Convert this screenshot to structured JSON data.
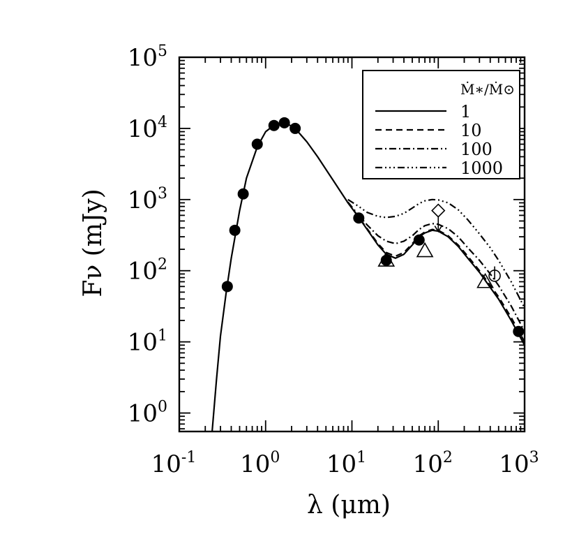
{
  "chart_data": {
    "type": "scatter",
    "xlabel": "λ (μm)",
    "ylabel": "Fν (mJy)",
    "xscale": "log",
    "yscale": "log",
    "xlim": [
      0.1,
      1000
    ],
    "ylim": [
      0.55,
      100000
    ],
    "grid": false,
    "x_ticks": [
      {
        "value": 0.1,
        "base": "10",
        "exp": "-1"
      },
      {
        "value": 1,
        "base": "10",
        "exp": "0"
      },
      {
        "value": 10,
        "base": "10",
        "exp": "1"
      },
      {
        "value": 100,
        "base": "10",
        "exp": "2"
      },
      {
        "value": 1000,
        "base": "10",
        "exp": "3"
      }
    ],
    "y_ticks": [
      {
        "value": 1,
        "base": "10",
        "exp": "0"
      },
      {
        "value": 10,
        "base": "10",
        "exp": "1"
      },
      {
        "value": 100,
        "base": "10",
        "exp": "2"
      },
      {
        "value": 1000,
        "base": "10",
        "exp": "3"
      },
      {
        "value": 10000,
        "base": "10",
        "exp": "4"
      },
      {
        "value": 100000,
        "base": "10",
        "exp": "5"
      }
    ],
    "legend": {
      "placement": "top-right",
      "title": "Ṁ∗/Ṁ⊙",
      "entries": [
        "1",
        "10",
        "100",
        "1000"
      ]
    },
    "series": [
      {
        "name": "1",
        "dash": "solid",
        "x": [
          0.24,
          0.27,
          0.3,
          0.35,
          0.4,
          0.5,
          0.6,
          0.8,
          1.0,
          1.3,
          1.7,
          2.2,
          3,
          4,
          6,
          9,
          12,
          15,
          20,
          25,
          32,
          40,
          50,
          60,
          70,
          85,
          100,
          130,
          170,
          220,
          300,
          400,
          500,
          700,
          1000
        ],
        "y": [
          0.55,
          3,
          12,
          50,
          150,
          700,
          2000,
          5500,
          9000,
          11500,
          12000,
          10000,
          6500,
          4000,
          1900,
          900,
          560,
          380,
          230,
          170,
          150,
          170,
          230,
          300,
          340,
          370,
          360,
          300,
          220,
          150,
          95,
          58,
          40,
          20,
          9
        ]
      },
      {
        "name": "10",
        "dash": "dashed",
        "x": [
          9,
          12,
          15,
          20,
          25,
          32,
          40,
          50,
          60,
          70,
          85,
          100,
          130,
          170,
          220,
          300,
          400,
          500,
          700,
          1000
        ],
        "y": [
          900,
          570,
          390,
          240,
          180,
          160,
          180,
          240,
          310,
          350,
          380,
          370,
          310,
          230,
          160,
          100,
          62,
          43,
          22,
          10
        ]
      },
      {
        "name": "100",
        "dash": "dashdot",
        "x": [
          9,
          12,
          15,
          20,
          25,
          32,
          40,
          50,
          60,
          70,
          85,
          100,
          130,
          170,
          220,
          300,
          400,
          500,
          700,
          1000
        ],
        "y": [
          920,
          600,
          440,
          310,
          260,
          240,
          260,
          310,
          380,
          430,
          460,
          450,
          390,
          300,
          210,
          140,
          90,
          62,
          32,
          14
        ]
      },
      {
        "name": "1000",
        "dash": "dashdotdotdot",
        "x": [
          9,
          12,
          15,
          20,
          25,
          32,
          40,
          50,
          60,
          70,
          85,
          100,
          130,
          170,
          220,
          300,
          400,
          500,
          700,
          1000
        ],
        "y": [
          1000,
          800,
          660,
          580,
          560,
          580,
          640,
          760,
          880,
          960,
          1000,
          990,
          900,
          720,
          520,
          330,
          210,
          140,
          70,
          30
        ]
      }
    ],
    "markers": {
      "filled_circles": [
        {
          "x": 0.36,
          "y": 60
        },
        {
          "x": 0.44,
          "y": 370
        },
        {
          "x": 0.55,
          "y": 1200
        },
        {
          "x": 0.8,
          "y": 6000
        },
        {
          "x": 1.25,
          "y": 11000
        },
        {
          "x": 1.65,
          "y": 12000
        },
        {
          "x": 2.2,
          "y": 10000
        },
        {
          "x": 12,
          "y": 550
        },
        {
          "x": 25,
          "y": 140
        },
        {
          "x": 60,
          "y": 270
        },
        {
          "x": 850,
          "y": 14
        }
      ],
      "open_triangles": [
        {
          "x": 25,
          "y": 140
        },
        {
          "x": 70,
          "y": 190
        },
        {
          "x": 350,
          "y": 70
        }
      ],
      "open_diamonds": [
        {
          "x": 100,
          "y": 700,
          "upper_limit": true
        }
      ],
      "open_circles": [
        {
          "x": 450,
          "y": 85,
          "err_low": 75,
          "err_high": 115
        }
      ]
    }
  }
}
